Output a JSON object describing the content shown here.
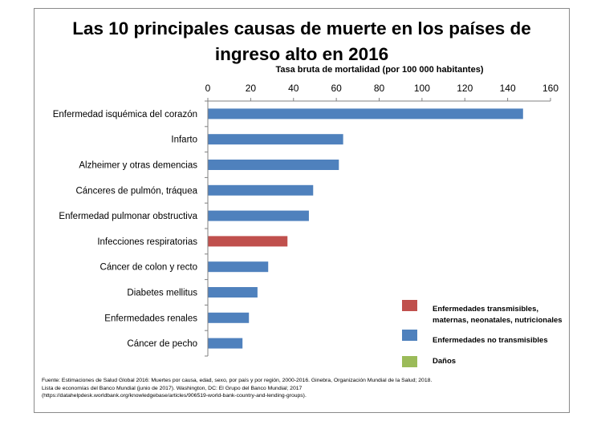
{
  "chart_data": {
    "type": "bar",
    "orientation": "horizontal",
    "title_line1": "Las 10 principales causas de muerte en los países de",
    "title_line2": "ingreso alto en 2016",
    "xlabel": "Tasa  bruta de mortalidad  (por 100 000 habitantes)",
    "xlim": [
      0,
      160
    ],
    "xticks": [
      "0",
      "20",
      "40",
      "60",
      "80",
      "100",
      "120",
      "140",
      "160"
    ],
    "categories": [
      "Enfermedad isquémica del corazón",
      "Infarto",
      "Alzheimer y otras demencias",
      "Cánceres de pulmón, tráquea",
      "Enfermedad pulmonar obstructiva",
      "Infecciones respiratorias",
      "Cáncer de colon y recto",
      "Diabetes mellitus",
      "Enfermedades renales",
      "Cáncer de pecho"
    ],
    "values": [
      147,
      63,
      61,
      49,
      47,
      37,
      28,
      23,
      19,
      16
    ],
    "groups": [
      "Enfermedades no transmisibles",
      "Enfermedades no transmisibles",
      "Enfermedades no transmisibles",
      "Enfermedades no transmisibles",
      "Enfermedades no transmisibles",
      "Enfermedades transmisibles, maternas, neonatales, nutricionales",
      "Enfermedades no transmisibles",
      "Enfermedades no transmisibles",
      "Enfermedades no transmisibles",
      "Enfermedades no transmisibles"
    ],
    "legend_position": "bottom-right",
    "legend": [
      {
        "label": "Enfermedades transmisibles,\nmaternas, neonatales, nutricionales",
        "color": "#c0504d"
      },
      {
        "label": "Enfermedades no transmisibles",
        "color": "#4f81bd"
      },
      {
        "label": "Daños",
        "color": "#9bbb59"
      }
    ],
    "grid": false
  },
  "source": {
    "line1": "Fuente: Estimaciones de Salud Global 2016: Muertes por causa, edad, sexo, por país y por región, 2000-2016. Ginebra, Organización Mundial de la Salud; 2018.",
    "line2": "Lista de economías del Banco Mundial (junio de 2017). Washington, DC: El Grupo del Banco Mundial; 2017",
    "line3": "(https://datahelpdesk.worldbank.org/knowledgebase/articles/906519-world-bank-country-and-lending-groups)."
  }
}
